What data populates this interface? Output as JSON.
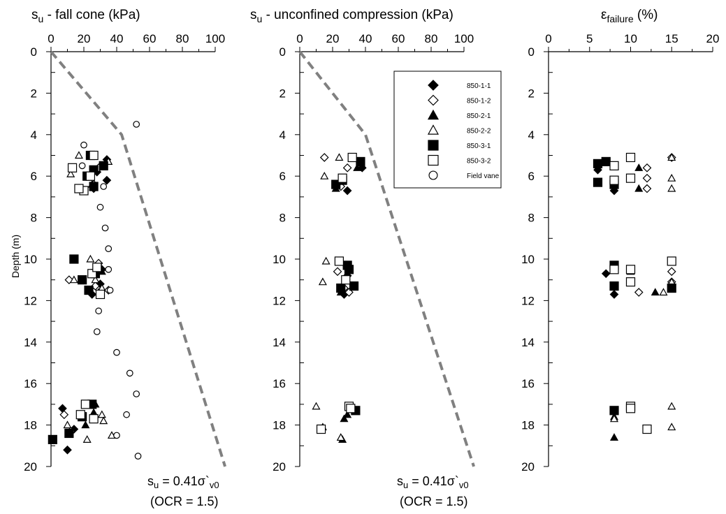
{
  "colors": {
    "line": "#000000",
    "dashed": "#808080",
    "marker": "#000000",
    "background": "#ffffff"
  },
  "y_axis_label": "Depth (m)",
  "panels": [
    {
      "id": "fall-cone",
      "title_main": "s",
      "title_sub": "u",
      "title_rest": " - fall cone (kPa)",
      "note": "s_u = 0.41σ`_v0 (OCR = 1.5)"
    },
    {
      "id": "unconfined",
      "title_main": "s",
      "title_sub": "u",
      "title_rest": " - unconfined compression (kPa)",
      "note": "s_u = 0.41σ`_v0 (OCR = 1.5)"
    },
    {
      "id": "failure-strain",
      "title_main": "ε",
      "title_sub": "failure",
      "title_rest": " (%)"
    }
  ],
  "annotations": [
    {
      "panel": 0,
      "line1_s": "s",
      "line1_sub": "u",
      "line1_eq": " = 0.41σ`",
      "line1_sub2": "v0",
      "line2": "(OCR = 1.5)"
    },
    {
      "panel": 1,
      "line1_s": "s",
      "line1_sub": "u",
      "line1_eq": " = 0.41σ`",
      "line1_sub2": "v0",
      "line2": "(OCR = 1.5)"
    }
  ],
  "legend": [
    {
      "label": "850-1-1",
      "marker": "diamond",
      "filled": true
    },
    {
      "label": "850-1-2",
      "marker": "diamond",
      "filled": false
    },
    {
      "label": "850-2-1",
      "marker": "triangle",
      "filled": true
    },
    {
      "label": "850-2-2",
      "marker": "triangle",
      "filled": false
    },
    {
      "label": "850-3-1",
      "marker": "square",
      "filled": true
    },
    {
      "label": "850-3-2",
      "marker": "square",
      "filled": false
    },
    {
      "label": "Field vane",
      "marker": "circle",
      "filled": false
    }
  ],
  "chart_data": [
    {
      "type": "scatter",
      "title": "su - fall cone (kPa)",
      "xlabel": "su - fall cone (kPa)",
      "ylabel": "Depth (m)",
      "xlim": [
        0,
        100
      ],
      "ylim": [
        20,
        0
      ],
      "x_ticks": [
        0,
        20,
        40,
        60,
        80,
        100
      ],
      "y_ticks": [
        0,
        2,
        4,
        6,
        8,
        10,
        12,
        14,
        16,
        18,
        20
      ],
      "reference_line": {
        "style": "dashed",
        "points": [
          [
            0,
            0
          ],
          [
            43,
            4
          ],
          [
            106,
            20
          ]
        ]
      },
      "series": [
        {
          "name": "850-1-1",
          "marker": "diamond",
          "filled": true,
          "points": [
            [
              34,
              5.2
            ],
            [
              28,
              5.8
            ],
            [
              34,
              6.2
            ],
            [
              26,
              6.6
            ],
            [
              31,
              10.5
            ],
            [
              30,
              11.2
            ],
            [
              25,
              11.7
            ],
            [
              7,
              17.2
            ],
            [
              10,
              19.2
            ],
            [
              14,
              18.2
            ]
          ]
        },
        {
          "name": "850-1-2",
          "marker": "diamond",
          "filled": false,
          "points": [
            [
              29,
              5.6
            ],
            [
              26,
              6.4
            ],
            [
              29,
              10.2
            ],
            [
              11,
              11.0
            ],
            [
              35,
              11.5
            ],
            [
              27,
              11.3
            ],
            [
              8,
              17.5
            ],
            [
              12,
              18.3
            ]
          ]
        },
        {
          "name": "850-2-1",
          "marker": "triangle",
          "filled": true,
          "points": [
            [
              25,
              6.4
            ],
            [
              31,
              10.6
            ],
            [
              29,
              11.6
            ],
            [
              27,
              17.0
            ],
            [
              21,
              18.0
            ],
            [
              26,
              17.4
            ]
          ]
        },
        {
          "name": "850-2-2",
          "marker": "triangle",
          "filled": false,
          "points": [
            [
              17,
              5.0
            ],
            [
              35,
              5.3
            ],
            [
              12,
              5.9
            ],
            [
              24,
              10.0
            ],
            [
              14,
              11.0
            ],
            [
              31,
              11.4
            ],
            [
              27,
              11.0
            ],
            [
              31,
              17.5
            ],
            [
              32,
              17.8
            ],
            [
              22,
              18.7
            ],
            [
              37,
              18.5
            ],
            [
              10,
              18.0
            ],
            [
              11,
              18.4
            ]
          ]
        },
        {
          "name": "850-3-1",
          "marker": "square",
          "filled": true,
          "points": [
            [
              24,
              5.0
            ],
            [
              32,
              5.5
            ],
            [
              26,
              5.7
            ],
            [
              22,
              6.0
            ],
            [
              26,
              6.5
            ],
            [
              14,
              10.0
            ],
            [
              19,
              11.0
            ],
            [
              27,
              10.7
            ],
            [
              23,
              11.5
            ],
            [
              25,
              17.0
            ],
            [
              19,
              17.6
            ],
            [
              11,
              18.4
            ],
            [
              1,
              18.7
            ]
          ]
        },
        {
          "name": "850-3-2",
          "marker": "square",
          "filled": false,
          "points": [
            [
              26,
              5.0
            ],
            [
              13,
              5.6
            ],
            [
              24,
              6.0
            ],
            [
              20,
              6.7
            ],
            [
              17,
              6.6
            ],
            [
              25,
              10.7
            ],
            [
              28,
              10.4
            ],
            [
              30,
              11.7
            ],
            [
              21,
              17.0
            ],
            [
              26,
              17.7
            ],
            [
              18,
              17.5
            ]
          ]
        },
        {
          "name": "Field vane",
          "marker": "circle",
          "filled": false,
          "points": [
            [
              52,
              3.5
            ],
            [
              20,
              4.5
            ],
            [
              19,
              5.5
            ],
            [
              32,
              6.5
            ],
            [
              30,
              7.5
            ],
            [
              33,
              8.5
            ],
            [
              35,
              9.5
            ],
            [
              35,
              10.5
            ],
            [
              36,
              11.5
            ],
            [
              29,
              12.5
            ],
            [
              28,
              13.5
            ],
            [
              40,
              14.5
            ],
            [
              48,
              15.5
            ],
            [
              52,
              16.5
            ],
            [
              46,
              17.5
            ],
            [
              40,
              18.5
            ],
            [
              53,
              19.5
            ]
          ]
        }
      ]
    },
    {
      "type": "scatter",
      "title": "su - unconfined compression (kPa)",
      "xlabel": "su - unconfined compression (kPa)",
      "ylabel": "Depth (m)",
      "xlim": [
        0,
        100
      ],
      "ylim": [
        20,
        0
      ],
      "x_ticks": [
        0,
        20,
        40,
        60,
        80,
        100
      ],
      "y_ticks": [
        0,
        2,
        4,
        6,
        8,
        10,
        12,
        14,
        16,
        18,
        20
      ],
      "reference_line": {
        "style": "dashed",
        "points": [
          [
            0,
            0
          ],
          [
            40,
            4
          ],
          [
            106,
            20
          ]
        ]
      },
      "series": [
        {
          "name": "850-1-1",
          "marker": "diamond",
          "filled": true,
          "points": [
            [
              38,
              5.6
            ],
            [
              29,
              6.7
            ],
            [
              25,
              6.3
            ],
            [
              29,
              10.8
            ],
            [
              27,
              11.7
            ]
          ]
        },
        {
          "name": "850-1-2",
          "marker": "diamond",
          "filled": false,
          "points": [
            [
              15,
              5.1
            ],
            [
              29,
              5.6
            ],
            [
              25,
              6.5
            ],
            [
              23,
              10.6
            ],
            [
              27,
              11.4
            ],
            [
              30,
              11.6
            ]
          ]
        },
        {
          "name": "850-2-1",
          "marker": "triangle",
          "filled": true,
          "points": [
            [
              35,
              5.6
            ],
            [
              22,
              6.6
            ],
            [
              25,
              11.6
            ],
            [
              29,
              17.5
            ],
            [
              27,
              17.7
            ],
            [
              26,
              18.7
            ]
          ]
        },
        {
          "name": "850-2-2",
          "marker": "triangle",
          "filled": false,
          "points": [
            [
              24,
              5.1
            ],
            [
              15,
              6.0
            ],
            [
              16,
              10.1
            ],
            [
              14,
              11.1
            ],
            [
              10,
              17.1
            ],
            [
              14,
              18.1
            ],
            [
              25,
              18.6
            ]
          ]
        },
        {
          "name": "850-3-1",
          "marker": "square",
          "filled": true,
          "points": [
            [
              37,
              5.3
            ],
            [
              22,
              6.4
            ],
            [
              26,
              6.2
            ],
            [
              29,
              10.3
            ],
            [
              30,
              10.5
            ],
            [
              33,
              11.3
            ],
            [
              25,
              11.4
            ],
            [
              34,
              17.3
            ]
          ]
        },
        {
          "name": "850-3-2",
          "marker": "square",
          "filled": false,
          "points": [
            [
              32,
              5.1
            ],
            [
              26,
              6.1
            ],
            [
              24,
              10.1
            ],
            [
              28,
              11.0
            ],
            [
              30,
              17.1
            ],
            [
              31,
              17.2
            ],
            [
              13,
              18.2
            ]
          ]
        }
      ]
    },
    {
      "type": "scatter",
      "title": "εfailure (%)",
      "xlabel": "εfailure (%)",
      "ylabel": "Depth (m)",
      "xlim": [
        0,
        20
      ],
      "ylim": [
        20,
        0
      ],
      "x_ticks": [
        0,
        5,
        10,
        15,
        20
      ],
      "y_ticks": [
        0,
        2,
        4,
        6,
        8,
        10,
        12,
        14,
        16,
        18,
        20
      ],
      "series": [
        {
          "name": "850-1-1",
          "marker": "diamond",
          "filled": true,
          "points": [
            [
              6,
              5.7
            ],
            [
              8,
              6.7
            ],
            [
              7,
              10.7
            ],
            [
              8,
              11.7
            ]
          ]
        },
        {
          "name": "850-1-2",
          "marker": "diamond",
          "filled": false,
          "points": [
            [
              15,
              5.1
            ],
            [
              12,
              5.6
            ],
            [
              12,
              6.1
            ],
            [
              12,
              6.6
            ],
            [
              15,
              10.6
            ],
            [
              15,
              11.1
            ],
            [
              11,
              11.6
            ]
          ]
        },
        {
          "name": "850-2-1",
          "marker": "triangle",
          "filled": true,
          "points": [
            [
              11,
              5.6
            ],
            [
              11,
              6.6
            ],
            [
              10,
              10.6
            ],
            [
              13,
              11.6
            ],
            [
              8,
              17.6
            ],
            [
              8,
              18.6
            ]
          ]
        },
        {
          "name": "850-2-2",
          "marker": "triangle",
          "filled": false,
          "points": [
            [
              15,
              5.1
            ],
            [
              15,
              6.1
            ],
            [
              15,
              6.6
            ],
            [
              15,
              10.1
            ],
            [
              15,
              11.1
            ],
            [
              14,
              11.6
            ],
            [
              15,
              17.1
            ],
            [
              15,
              18.1
            ],
            [
              8,
              17.7
            ]
          ]
        },
        {
          "name": "850-3-1",
          "marker": "square",
          "filled": true,
          "points": [
            [
              6,
              5.4
            ],
            [
              7,
              5.3
            ],
            [
              6,
              6.3
            ],
            [
              8,
              6.4
            ],
            [
              8,
              10.3
            ],
            [
              8,
              11.3
            ],
            [
              15,
              11.4
            ],
            [
              8,
              17.3
            ]
          ]
        },
        {
          "name": "850-3-2",
          "marker": "square",
          "filled": false,
          "points": [
            [
              10,
              5.1
            ],
            [
              8,
              5.5
            ],
            [
              8,
              6.2
            ],
            [
              10,
              6.1
            ],
            [
              8,
              10.5
            ],
            [
              10,
              10.5
            ],
            [
              10,
              11.1
            ],
            [
              15,
              10.1
            ],
            [
              10,
              17.1
            ],
            [
              10,
              17.2
            ],
            [
              12,
              18.2
            ]
          ]
        }
      ]
    }
  ]
}
